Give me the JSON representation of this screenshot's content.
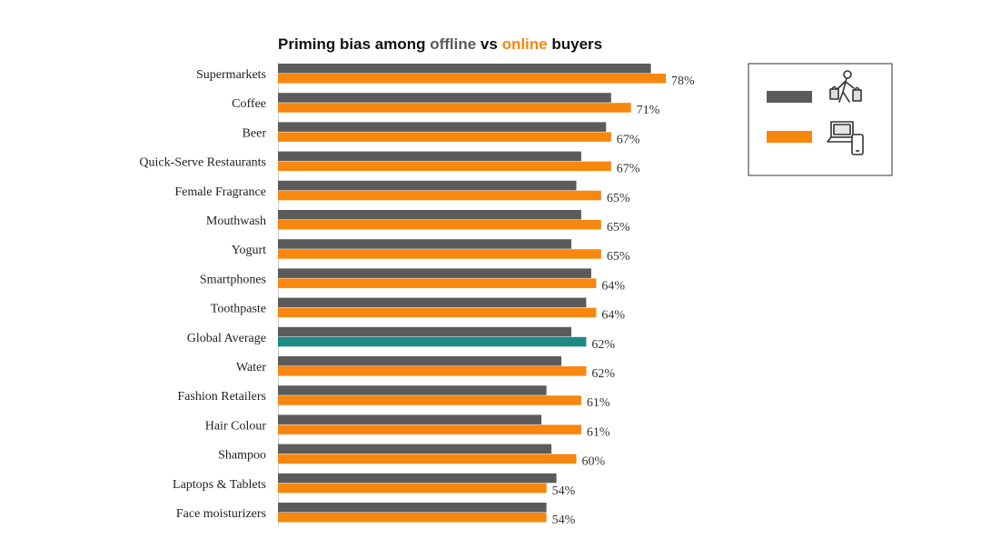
{
  "chart_data": {
    "type": "bar",
    "orientation": "horizontal",
    "title_parts": [
      {
        "text": "Priming bias among ",
        "role": "plain"
      },
      {
        "text": "offline",
        "role": "offline"
      },
      {
        "text": " vs ",
        "role": "plain"
      },
      {
        "text": "online",
        "role": "online"
      },
      {
        "text": " buyers",
        "role": "plain"
      }
    ],
    "categories": [
      "Supermarkets",
      "Coffee",
      "Beer",
      "Quick-Serve Restaurants",
      "Female Fragrance",
      "Mouthwash",
      "Yogurt",
      "Smartphones",
      "Toothpaste",
      "Global Average",
      "Water",
      "Fashion Retailers",
      "Hair Colour",
      "Shampoo",
      "Laptops & Tablets",
      "Face moisturizers"
    ],
    "series": [
      {
        "name": "offline",
        "icon": "shopper-with-bags-icon",
        "values": [
          75,
          67,
          66,
          61,
          60,
          61,
          59,
          63,
          62,
          59,
          57,
          54,
          53,
          55,
          56,
          54
        ]
      },
      {
        "name": "online",
        "icon": "laptop-and-phone-icon",
        "values": [
          78,
          71,
          67,
          67,
          65,
          65,
          65,
          64,
          64,
          62,
          62,
          61,
          61,
          60,
          54,
          54
        ]
      }
    ],
    "value_labels": [
      "78%",
      "71%",
      "67%",
      "67%",
      "65%",
      "65%",
      "65%",
      "64%",
      "64%",
      "62%",
      "62%",
      "61%",
      "61%",
      "60%",
      "54%",
      "54%"
    ],
    "highlight_category": "Global Average",
    "xlim": [
      0,
      100
    ],
    "grid": false,
    "legend_position": "top-right"
  },
  "colors": {
    "offline": "#5b5b5b",
    "online": "#f7870e",
    "highlight": "#1d8a86",
    "title": "#111111"
  }
}
